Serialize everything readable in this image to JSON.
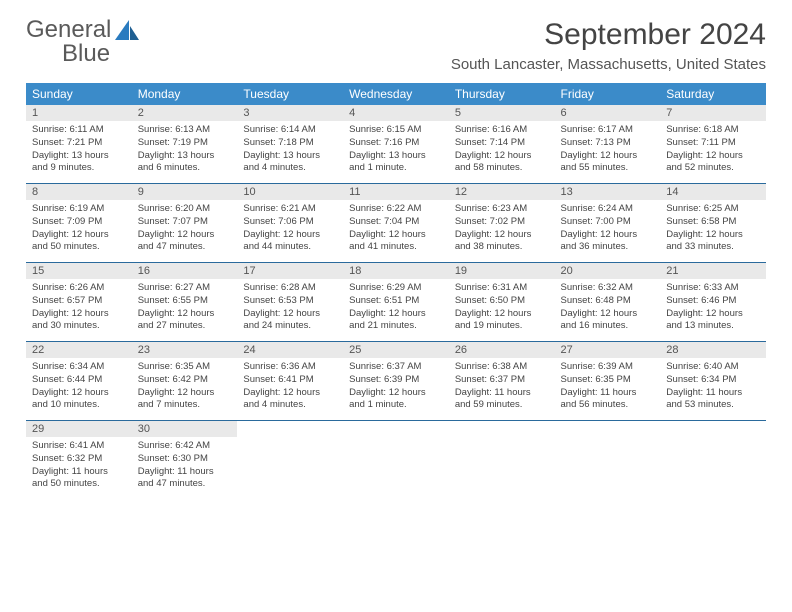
{
  "logo": {
    "word1": "General",
    "word2": "Blue"
  },
  "title": "September 2024",
  "location": "South Lancaster, Massachusetts, United States",
  "colors": {
    "header_bg": "#3b8bc9",
    "header_text": "#ffffff",
    "daynum_bg": "#e9e9e9",
    "row_border": "#2a6a9c",
    "logo_gray": "#5a5a5a",
    "logo_blue": "#2a7bbf"
  },
  "weekdays": [
    "Sunday",
    "Monday",
    "Tuesday",
    "Wednesday",
    "Thursday",
    "Friday",
    "Saturday"
  ],
  "weeks": [
    [
      {
        "n": "1",
        "sr": "Sunrise: 6:11 AM",
        "ss": "Sunset: 7:21 PM",
        "d1": "Daylight: 13 hours",
        "d2": "and 9 minutes."
      },
      {
        "n": "2",
        "sr": "Sunrise: 6:13 AM",
        "ss": "Sunset: 7:19 PM",
        "d1": "Daylight: 13 hours",
        "d2": "and 6 minutes."
      },
      {
        "n": "3",
        "sr": "Sunrise: 6:14 AM",
        "ss": "Sunset: 7:18 PM",
        "d1": "Daylight: 13 hours",
        "d2": "and 4 minutes."
      },
      {
        "n": "4",
        "sr": "Sunrise: 6:15 AM",
        "ss": "Sunset: 7:16 PM",
        "d1": "Daylight: 13 hours",
        "d2": "and 1 minute."
      },
      {
        "n": "5",
        "sr": "Sunrise: 6:16 AM",
        "ss": "Sunset: 7:14 PM",
        "d1": "Daylight: 12 hours",
        "d2": "and 58 minutes."
      },
      {
        "n": "6",
        "sr": "Sunrise: 6:17 AM",
        "ss": "Sunset: 7:13 PM",
        "d1": "Daylight: 12 hours",
        "d2": "and 55 minutes."
      },
      {
        "n": "7",
        "sr": "Sunrise: 6:18 AM",
        "ss": "Sunset: 7:11 PM",
        "d1": "Daylight: 12 hours",
        "d2": "and 52 minutes."
      }
    ],
    [
      {
        "n": "8",
        "sr": "Sunrise: 6:19 AM",
        "ss": "Sunset: 7:09 PM",
        "d1": "Daylight: 12 hours",
        "d2": "and 50 minutes."
      },
      {
        "n": "9",
        "sr": "Sunrise: 6:20 AM",
        "ss": "Sunset: 7:07 PM",
        "d1": "Daylight: 12 hours",
        "d2": "and 47 minutes."
      },
      {
        "n": "10",
        "sr": "Sunrise: 6:21 AM",
        "ss": "Sunset: 7:06 PM",
        "d1": "Daylight: 12 hours",
        "d2": "and 44 minutes."
      },
      {
        "n": "11",
        "sr": "Sunrise: 6:22 AM",
        "ss": "Sunset: 7:04 PM",
        "d1": "Daylight: 12 hours",
        "d2": "and 41 minutes."
      },
      {
        "n": "12",
        "sr": "Sunrise: 6:23 AM",
        "ss": "Sunset: 7:02 PM",
        "d1": "Daylight: 12 hours",
        "d2": "and 38 minutes."
      },
      {
        "n": "13",
        "sr": "Sunrise: 6:24 AM",
        "ss": "Sunset: 7:00 PM",
        "d1": "Daylight: 12 hours",
        "d2": "and 36 minutes."
      },
      {
        "n": "14",
        "sr": "Sunrise: 6:25 AM",
        "ss": "Sunset: 6:58 PM",
        "d1": "Daylight: 12 hours",
        "d2": "and 33 minutes."
      }
    ],
    [
      {
        "n": "15",
        "sr": "Sunrise: 6:26 AM",
        "ss": "Sunset: 6:57 PM",
        "d1": "Daylight: 12 hours",
        "d2": "and 30 minutes."
      },
      {
        "n": "16",
        "sr": "Sunrise: 6:27 AM",
        "ss": "Sunset: 6:55 PM",
        "d1": "Daylight: 12 hours",
        "d2": "and 27 minutes."
      },
      {
        "n": "17",
        "sr": "Sunrise: 6:28 AM",
        "ss": "Sunset: 6:53 PM",
        "d1": "Daylight: 12 hours",
        "d2": "and 24 minutes."
      },
      {
        "n": "18",
        "sr": "Sunrise: 6:29 AM",
        "ss": "Sunset: 6:51 PM",
        "d1": "Daylight: 12 hours",
        "d2": "and 21 minutes."
      },
      {
        "n": "19",
        "sr": "Sunrise: 6:31 AM",
        "ss": "Sunset: 6:50 PM",
        "d1": "Daylight: 12 hours",
        "d2": "and 19 minutes."
      },
      {
        "n": "20",
        "sr": "Sunrise: 6:32 AM",
        "ss": "Sunset: 6:48 PM",
        "d1": "Daylight: 12 hours",
        "d2": "and 16 minutes."
      },
      {
        "n": "21",
        "sr": "Sunrise: 6:33 AM",
        "ss": "Sunset: 6:46 PM",
        "d1": "Daylight: 12 hours",
        "d2": "and 13 minutes."
      }
    ],
    [
      {
        "n": "22",
        "sr": "Sunrise: 6:34 AM",
        "ss": "Sunset: 6:44 PM",
        "d1": "Daylight: 12 hours",
        "d2": "and 10 minutes."
      },
      {
        "n": "23",
        "sr": "Sunrise: 6:35 AM",
        "ss": "Sunset: 6:42 PM",
        "d1": "Daylight: 12 hours",
        "d2": "and 7 minutes."
      },
      {
        "n": "24",
        "sr": "Sunrise: 6:36 AM",
        "ss": "Sunset: 6:41 PM",
        "d1": "Daylight: 12 hours",
        "d2": "and 4 minutes."
      },
      {
        "n": "25",
        "sr": "Sunrise: 6:37 AM",
        "ss": "Sunset: 6:39 PM",
        "d1": "Daylight: 12 hours",
        "d2": "and 1 minute."
      },
      {
        "n": "26",
        "sr": "Sunrise: 6:38 AM",
        "ss": "Sunset: 6:37 PM",
        "d1": "Daylight: 11 hours",
        "d2": "and 59 minutes."
      },
      {
        "n": "27",
        "sr": "Sunrise: 6:39 AM",
        "ss": "Sunset: 6:35 PM",
        "d1": "Daylight: 11 hours",
        "d2": "and 56 minutes."
      },
      {
        "n": "28",
        "sr": "Sunrise: 6:40 AM",
        "ss": "Sunset: 6:34 PM",
        "d1": "Daylight: 11 hours",
        "d2": "and 53 minutes."
      }
    ],
    [
      {
        "n": "29",
        "sr": "Sunrise: 6:41 AM",
        "ss": "Sunset: 6:32 PM",
        "d1": "Daylight: 11 hours",
        "d2": "and 50 minutes."
      },
      {
        "n": "30",
        "sr": "Sunrise: 6:42 AM",
        "ss": "Sunset: 6:30 PM",
        "d1": "Daylight: 11 hours",
        "d2": "and 47 minutes."
      },
      null,
      null,
      null,
      null,
      null
    ]
  ]
}
